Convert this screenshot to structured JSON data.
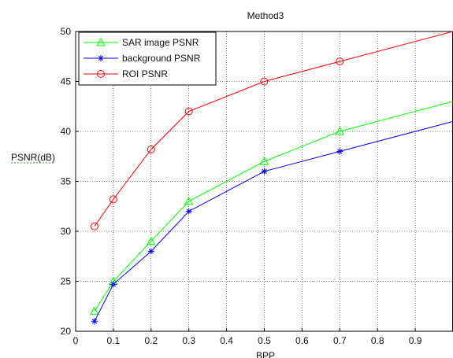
{
  "chart_data": {
    "type": "line",
    "title": "Method3",
    "xlabel": "BPP",
    "ylabel": "PSNR(dB)",
    "xlim": [
      0,
      1.0
    ],
    "ylim": [
      20,
      50
    ],
    "xticks": [
      0,
      0.1,
      0.2,
      0.3,
      0.4,
      0.5,
      0.6,
      0.7,
      0.8,
      0.9
    ],
    "xtick_labels": [
      "0",
      "0.1",
      "0.2",
      "0.3",
      "0.4",
      "0.5",
      "0.6",
      "0.7",
      "0.8",
      "0.9"
    ],
    "yticks": [
      20,
      25,
      30,
      35,
      40,
      45,
      50
    ],
    "ytick_labels": [
      "20",
      "25",
      "30",
      "35",
      "40",
      "45",
      "50"
    ],
    "grid": true,
    "legend_position": "top-left",
    "series": [
      {
        "name": "SAR image PSNR",
        "color": "#00ff00",
        "marker": "triangle",
        "x": [
          0.05,
          0.1,
          0.2,
          0.3,
          0.5,
          0.7,
          1.0
        ],
        "y": [
          22.0,
          25.0,
          29.0,
          33.0,
          37.0,
          40.0,
          43.0
        ]
      },
      {
        "name": "background PSNR",
        "color": "#0000ff",
        "marker": "star",
        "x": [
          0.05,
          0.1,
          0.2,
          0.3,
          0.5,
          0.7,
          1.0
        ],
        "y": [
          21.0,
          24.7,
          28.0,
          32.0,
          36.0,
          38.0,
          41.0
        ]
      },
      {
        "name": "ROI PSNR",
        "color": "#ff0000",
        "marker": "circle",
        "x": [
          0.05,
          0.1,
          0.2,
          0.3,
          0.5,
          0.7,
          1.0
        ],
        "y": [
          30.5,
          33.2,
          38.2,
          42.0,
          45.0,
          47.0,
          50.0
        ]
      }
    ]
  }
}
